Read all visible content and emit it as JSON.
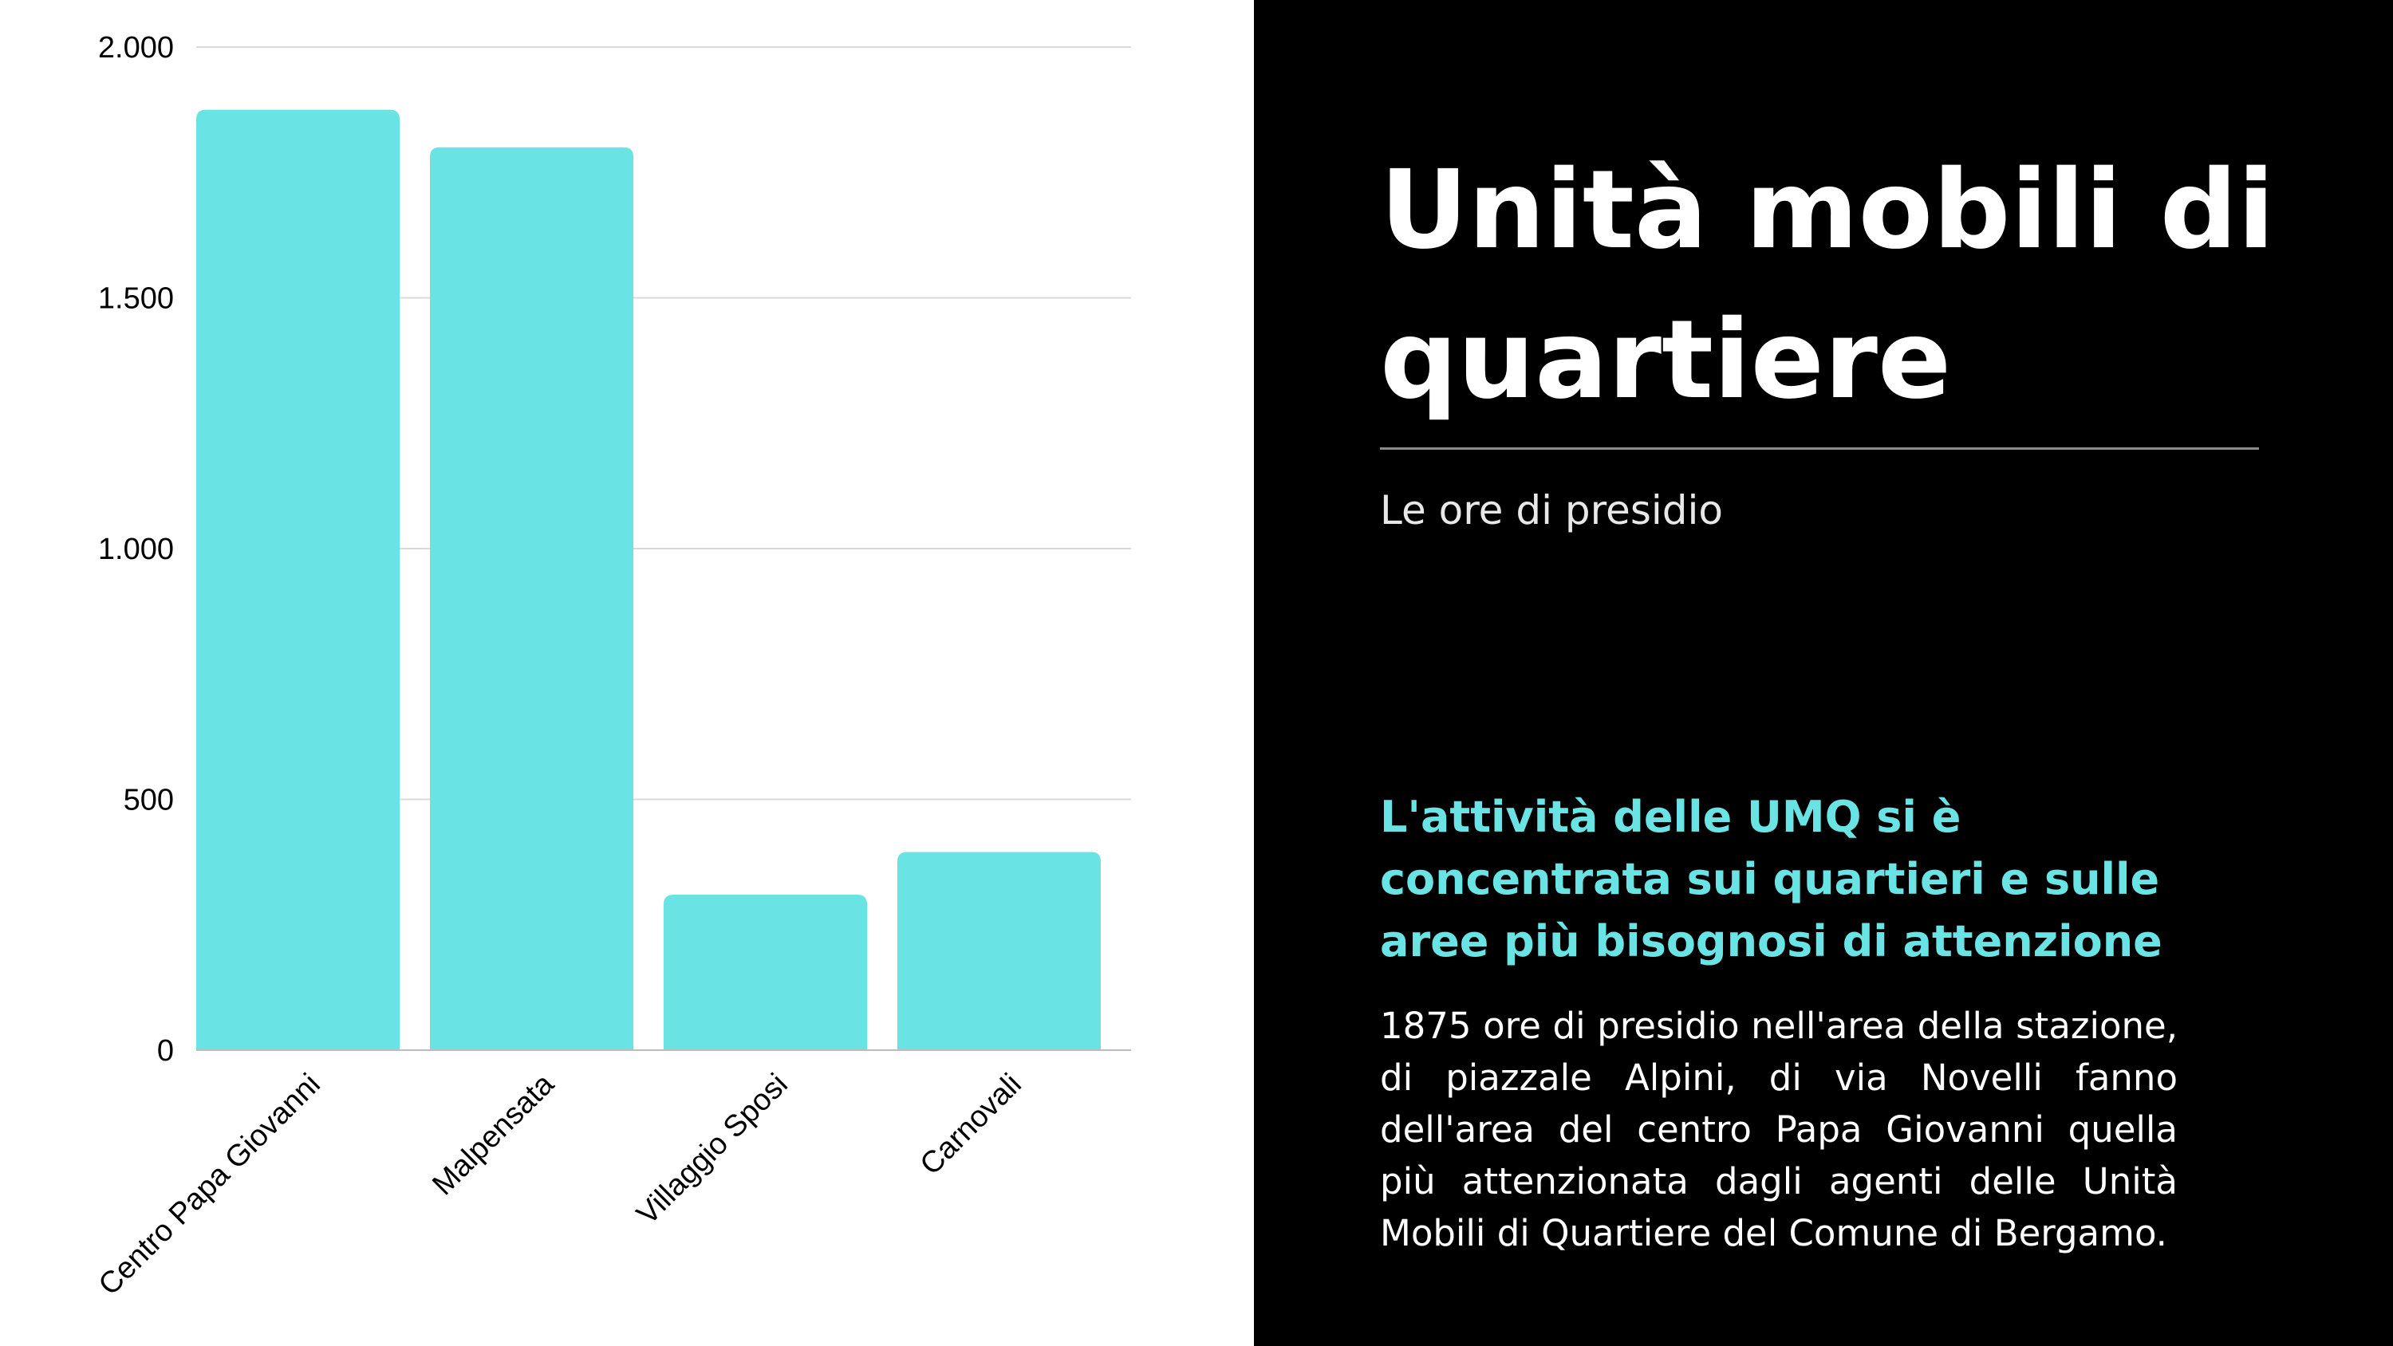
{
  "panel": {
    "title": "Unità mobili di quartiere",
    "subtitle": "Le ore di presidio",
    "highlight": "L'attività delle UMQ si è concentrata sui quartieri e sulle aree più bisognosi di attenzione",
    "body": "1875 ore di presidio nell'area della stazione, di piazzale Alpini, di via Novelli fanno dell'area del centro Papa Giovanni quella più attenzionata dagli agenti delle Unità Mobili di Quartiere del Comune di Bergamo."
  },
  "colors": {
    "bar": "#6ae3e5",
    "panel_background": "#000000",
    "highlight_text": "#6ae3e5",
    "grid": "#d9d9d9"
  },
  "chart_data": {
    "type": "bar",
    "categories": [
      "Centro Papa Giovanni",
      "Malpensata",
      "Villaggio Sposi",
      "Carnovali"
    ],
    "values": [
      1875,
      1800,
      310,
      395
    ],
    "ylim": [
      0,
      2000
    ],
    "yticks": [
      0,
      500,
      1000,
      1500,
      2000
    ],
    "ytick_labels": [
      "0",
      "500",
      "1.000",
      "1.500",
      "2.000"
    ],
    "grid": true,
    "legend": false,
    "title": "",
    "xlabel": "",
    "ylabel": ""
  }
}
